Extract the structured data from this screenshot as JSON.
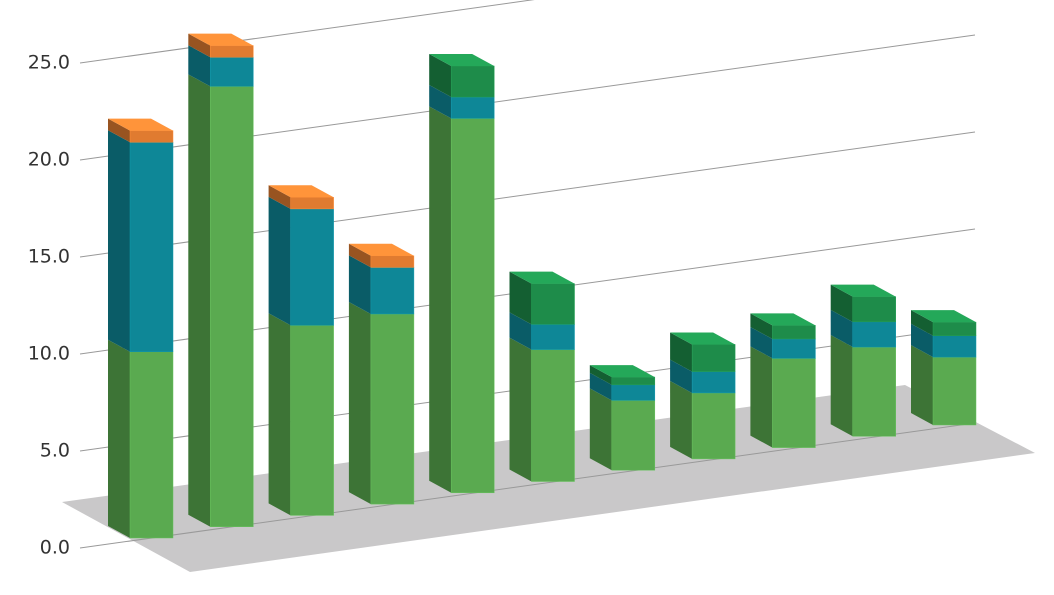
{
  "chart_data": {
    "type": "bar3d_stacked",
    "categories": [
      null,
      null,
      null,
      null,
      null,
      null,
      null,
      null,
      null,
      null,
      null
    ],
    "series": [
      {
        "color": "#5aaa50",
        "values": [
          9.6,
          22.7,
          9.8,
          9.8,
          19.3,
          6.8,
          3.6,
          3.4,
          4.6,
          4.6,
          3.5
        ]
      },
      {
        "color": "#0e8797",
        "values": [
          10.8,
          1.5,
          6.0,
          2.4,
          1.1,
          1.3,
          0.8,
          1.1,
          1.0,
          1.3,
          1.1
        ]
      },
      {
        "color": "#e07b30",
        "values": [
          0.6,
          0.6,
          0.6,
          0.6,
          0,
          0,
          0,
          0,
          0,
          0,
          0
        ]
      },
      {
        "color": "#1e8c4a",
        "values": [
          0,
          0,
          0,
          0,
          1.6,
          2.1,
          0.4,
          1.4,
          0.7,
          1.3,
          0.7
        ]
      }
    ],
    "ylim": [
      0,
      25
    ],
    "yticks": [
      {
        "value": 0,
        "label": "0.0"
      },
      {
        "value": 5,
        "label": "5.0"
      },
      {
        "value": 10,
        "label": "10.0"
      },
      {
        "value": 15,
        "label": "15.0"
      },
      {
        "value": 20,
        "label": "20.0"
      },
      {
        "value": 25,
        "label": "25.0"
      }
    ],
    "grid": true
  }
}
